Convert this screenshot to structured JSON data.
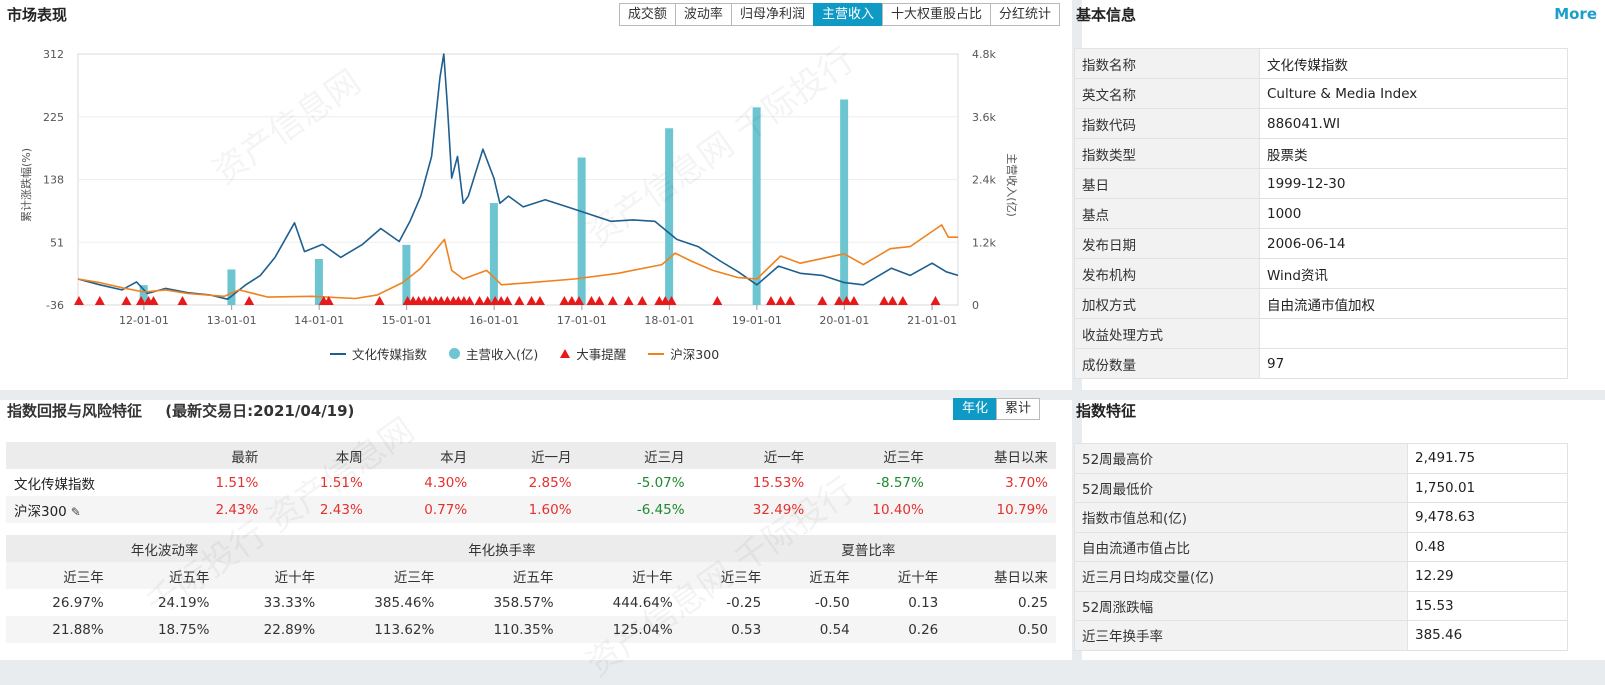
{
  "market": {
    "title": "市场表现",
    "tabs": [
      "成交额",
      "波动率",
      "归母净利润",
      "主营收入",
      "十大权重股占比",
      "分红统计"
    ],
    "active_tab": 3,
    "legend": {
      "index": "文化传媒指数",
      "revenue": "主营收入(亿)",
      "events": "大事提醒",
      "hs300": "沪深300"
    }
  },
  "chart_data": {
    "type": "line",
    "ylabel_left": "累计涨跌幅(%)",
    "ylabel_right": "主营收入(亿)",
    "left_ticks": [
      "312",
      "225",
      "138",
      "51",
      "-36"
    ],
    "right_ticks": [
      "4.8k",
      "3.6k",
      "2.4k",
      "1.2k",
      "0"
    ],
    "ylim_left": [
      -36,
      312
    ],
    "ylim_right": [
      0,
      4800
    ],
    "x_ticks": [
      "12-01-01",
      "13-01-01",
      "14-01-01",
      "15-01-01",
      "16-01-01",
      "17-01-01",
      "18-01-01",
      "19-01-01",
      "20-01-01",
      "21-01-01"
    ],
    "x_range": [
      "2011-04-01",
      "2021-04-19"
    ],
    "series": [
      {
        "name": "文化传媒指数",
        "color": "#1f5f8f",
        "points": [
          [
            "2011-04-01",
            0
          ],
          [
            "2011-07-01",
            -8
          ],
          [
            "2011-10-01",
            -15
          ],
          [
            "2011-12-01",
            -4
          ],
          [
            "2012-01-15",
            -20
          ],
          [
            "2012-04-01",
            -13
          ],
          [
            "2012-07-01",
            -19
          ],
          [
            "2012-10-01",
            -22
          ],
          [
            "2012-12-15",
            -28
          ],
          [
            "2013-03-01",
            -8
          ],
          [
            "2013-05-01",
            5
          ],
          [
            "2013-07-01",
            30
          ],
          [
            "2013-09-20",
            78
          ],
          [
            "2013-11-01",
            38
          ],
          [
            "2014-01-15",
            48
          ],
          [
            "2014-04-01",
            30
          ],
          [
            "2014-07-01",
            48
          ],
          [
            "2014-09-15",
            70
          ],
          [
            "2014-12-01",
            52
          ],
          [
            "2015-01-15",
            80
          ],
          [
            "2015-03-01",
            115
          ],
          [
            "2015-04-15",
            170
          ],
          [
            "2015-05-20",
            280
          ],
          [
            "2015-06-05",
            312
          ],
          [
            "2015-06-20",
            240
          ],
          [
            "2015-07-08",
            140
          ],
          [
            "2015-08-01",
            170
          ],
          [
            "2015-08-25",
            105
          ],
          [
            "2015-09-15",
            115
          ],
          [
            "2015-11-15",
            180
          ],
          [
            "2015-12-31",
            140
          ],
          [
            "2016-01-25",
            105
          ],
          [
            "2016-03-01",
            115
          ],
          [
            "2016-05-01",
            100
          ],
          [
            "2016-08-01",
            110
          ],
          [
            "2016-11-01",
            100
          ],
          [
            "2017-02-01",
            90
          ],
          [
            "2017-05-01",
            80
          ],
          [
            "2017-08-01",
            82
          ],
          [
            "2017-11-01",
            80
          ],
          [
            "2018-02-01",
            55
          ],
          [
            "2018-05-01",
            45
          ],
          [
            "2018-08-01",
            25
          ],
          [
            "2018-10-15",
            10
          ],
          [
            "2019-01-01",
            -8
          ],
          [
            "2019-04-01",
            18
          ],
          [
            "2019-07-01",
            8
          ],
          [
            "2019-10-01",
            5
          ],
          [
            "2020-01-01",
            -5
          ],
          [
            "2020-03-20",
            -8
          ],
          [
            "2020-07-15",
            15
          ],
          [
            "2020-10-01",
            5
          ],
          [
            "2021-01-01",
            22
          ],
          [
            "2021-03-01",
            10
          ],
          [
            "2021-04-19",
            5
          ]
        ]
      },
      {
        "name": "沪深300",
        "color": "#f0821e",
        "points": [
          [
            "2011-04-01",
            0
          ],
          [
            "2011-07-01",
            -5
          ],
          [
            "2011-10-01",
            -12
          ],
          [
            "2012-01-01",
            -18
          ],
          [
            "2012-04-01",
            -15
          ],
          [
            "2012-07-01",
            -20
          ],
          [
            "2012-12-01",
            -24
          ],
          [
            "2013-02-01",
            -15
          ],
          [
            "2013-06-01",
            -25
          ],
          [
            "2013-12-01",
            -24
          ],
          [
            "2014-06-01",
            -27
          ],
          [
            "2014-09-01",
            -22
          ],
          [
            "2014-12-15",
            -5
          ],
          [
            "2015-03-01",
            15
          ],
          [
            "2015-06-08",
            55
          ],
          [
            "2015-07-08",
            12
          ],
          [
            "2015-08-25",
            0
          ],
          [
            "2015-12-01",
            12
          ],
          [
            "2016-02-01",
            -8
          ],
          [
            "2016-06-01",
            -5
          ],
          [
            "2016-12-01",
            0
          ],
          [
            "2017-06-01",
            8
          ],
          [
            "2017-12-01",
            20
          ],
          [
            "2018-01-25",
            36
          ],
          [
            "2018-04-01",
            25
          ],
          [
            "2018-07-01",
            12
          ],
          [
            "2018-10-15",
            2
          ],
          [
            "2019-01-01",
            0
          ],
          [
            "2019-04-10",
            32
          ],
          [
            "2019-07-01",
            22
          ],
          [
            "2019-12-31",
            35
          ],
          [
            "2020-03-20",
            20
          ],
          [
            "2020-07-10",
            42
          ],
          [
            "2020-10-01",
            45
          ],
          [
            "2021-02-10",
            75
          ],
          [
            "2021-03-10",
            58
          ],
          [
            "2021-04-19",
            58
          ]
        ]
      },
      {
        "name": "主营收入(亿)",
        "type": "bar",
        "color": "#6cc5d1",
        "points": [
          [
            "2011-12-31",
            380
          ],
          [
            "2012-12-31",
            680
          ],
          [
            "2013-12-31",
            880
          ],
          [
            "2014-12-31",
            1150
          ],
          [
            "2015-12-31",
            1950
          ],
          [
            "2016-12-31",
            2820
          ],
          [
            "2017-12-31",
            3380
          ],
          [
            "2018-12-31",
            3780
          ],
          [
            "2019-12-31",
            3930
          ]
        ]
      }
    ],
    "events_dates": [
      "2011-04-05",
      "2011-07-01",
      "2011-10-20",
      "2011-12-20",
      "2012-01-20",
      "2012-02-10",
      "2012-06-10",
      "2013-03-15",
      "2014-01-20",
      "2014-02-10",
      "2014-09-10",
      "2015-01-05",
      "2015-01-28",
      "2015-02-20",
      "2015-03-15",
      "2015-04-08",
      "2015-05-02",
      "2015-05-25",
      "2015-06-20",
      "2015-07-15",
      "2015-08-05",
      "2015-08-28",
      "2015-09-20",
      "2015-11-01",
      "2015-12-05",
      "2016-01-05",
      "2016-01-30",
      "2016-02-25",
      "2016-04-15",
      "2016-06-05",
      "2016-07-10",
      "2016-10-20",
      "2016-11-20",
      "2016-12-20",
      "2017-02-10",
      "2017-03-15",
      "2017-05-10",
      "2017-07-15",
      "2017-09-10",
      "2017-11-20",
      "2017-12-15",
      "2018-01-10",
      "2018-07-20",
      "2019-03-01",
      "2019-04-10",
      "2019-05-20",
      "2019-10-01",
      "2019-12-10",
      "2020-01-10",
      "2020-02-10",
      "2020-06-15",
      "2020-07-20",
      "2020-09-01",
      "2021-01-15"
    ]
  },
  "info": {
    "title": "基本信息",
    "more": "More",
    "rows": [
      {
        "k": "指数名称",
        "v": "文化传媒指数"
      },
      {
        "k": "英文名称",
        "v": "Culture & Media Index"
      },
      {
        "k": "指数代码",
        "v": "886041.WI"
      },
      {
        "k": "指数类型",
        "v": "股票类"
      },
      {
        "k": "基日",
        "v": "1999-12-30"
      },
      {
        "k": "基点",
        "v": "1000"
      },
      {
        "k": "发布日期",
        "v": "2006-06-14"
      },
      {
        "k": "发布机构",
        "v": "Wind资讯"
      },
      {
        "k": "加权方式",
        "v": "自由流通市值加权"
      },
      {
        "k": "收益处理方式",
        "v": ""
      },
      {
        "k": "成份数量",
        "v": "97"
      }
    ]
  },
  "returns": {
    "title": "指数回报与风险特征",
    "subtitle": "(最新交易日:2021/04/19)",
    "toggle": [
      "年化",
      "累计"
    ],
    "headers": [
      "",
      "最新",
      "本周",
      "本月",
      "近一月",
      "近三月",
      "近一年",
      "近三年",
      "基日以来"
    ],
    "rows": [
      {
        "name": "文化传媒指数",
        "values": [
          "1.51%",
          "1.51%",
          "4.30%",
          "2.85%",
          "-5.07%",
          "15.53%",
          "-8.57%",
          "3.70%"
        ]
      },
      {
        "name": "沪深300",
        "values": [
          "2.43%",
          "2.43%",
          "0.77%",
          "1.60%",
          "-6.45%",
          "32.49%",
          "10.40%",
          "10.79%"
        ]
      }
    ],
    "edit_icon": "pencil-icon",
    "groups": [
      "年化波动率",
      "年化换手率",
      "夏普比率"
    ],
    "subheaders": [
      "近三年",
      "近五年",
      "近十年",
      "近三年",
      "近五年",
      "近十年",
      "近三年",
      "近五年",
      "近十年",
      "基日以来"
    ],
    "rows2": [
      [
        "26.97%",
        "24.19%",
        "33.33%",
        "385.46%",
        "358.57%",
        "444.64%",
        "-0.25",
        "-0.50",
        "0.13",
        "0.25"
      ],
      [
        "21.88%",
        "18.75%",
        "22.89%",
        "113.62%",
        "110.35%",
        "125.04%",
        "0.53",
        "0.54",
        "0.26",
        "0.50"
      ]
    ],
    "up_color": "#e4302e",
    "down_color": "#1e8a2e"
  },
  "features": {
    "title": "指数特征",
    "rows": [
      {
        "k": "52周最高价",
        "v": "2,491.75"
      },
      {
        "k": "52周最低价",
        "v": "1,750.01"
      },
      {
        "k": "指数市值总和(亿)",
        "v": "9,478.63"
      },
      {
        "k": "自由流通市值占比",
        "v": "0.48"
      },
      {
        "k": "近三月日均成交量(亿)",
        "v": "12.29"
      },
      {
        "k": "52周涨跌幅",
        "v": "15.53"
      },
      {
        "k": "近三年换手率",
        "v": "385.46"
      }
    ]
  }
}
